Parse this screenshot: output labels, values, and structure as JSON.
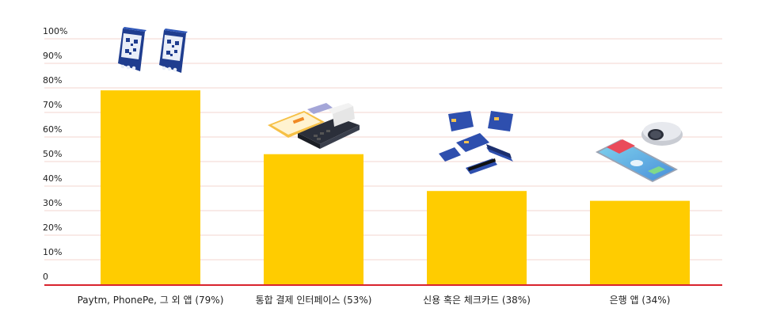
{
  "chart_data": {
    "type": "bar",
    "categories": [
      "Paytm, PhonePe, 그 외 앱 (79%)",
      "통합 결제 인터페이스 (53%)",
      "신용 혹은 체크카드 (38%)",
      "은행 앱 (34%)"
    ],
    "values": [
      79,
      53,
      38,
      34
    ],
    "ylim": [
      0,
      100
    ],
    "yticks": [
      "0",
      "10%",
      "20%",
      "30%",
      "40%",
      "50%",
      "60%",
      "70%",
      "80%",
      "90%",
      "100%"
    ],
    "grid": true,
    "bar_color": "#FFCC00",
    "grid_color": "#F3D5CF",
    "baseline_color": "#D9232D",
    "icons": [
      "qr-stand-icon",
      "card-terminal-icon",
      "credit-cards-icon",
      "smartphone-payment-icon"
    ]
  }
}
